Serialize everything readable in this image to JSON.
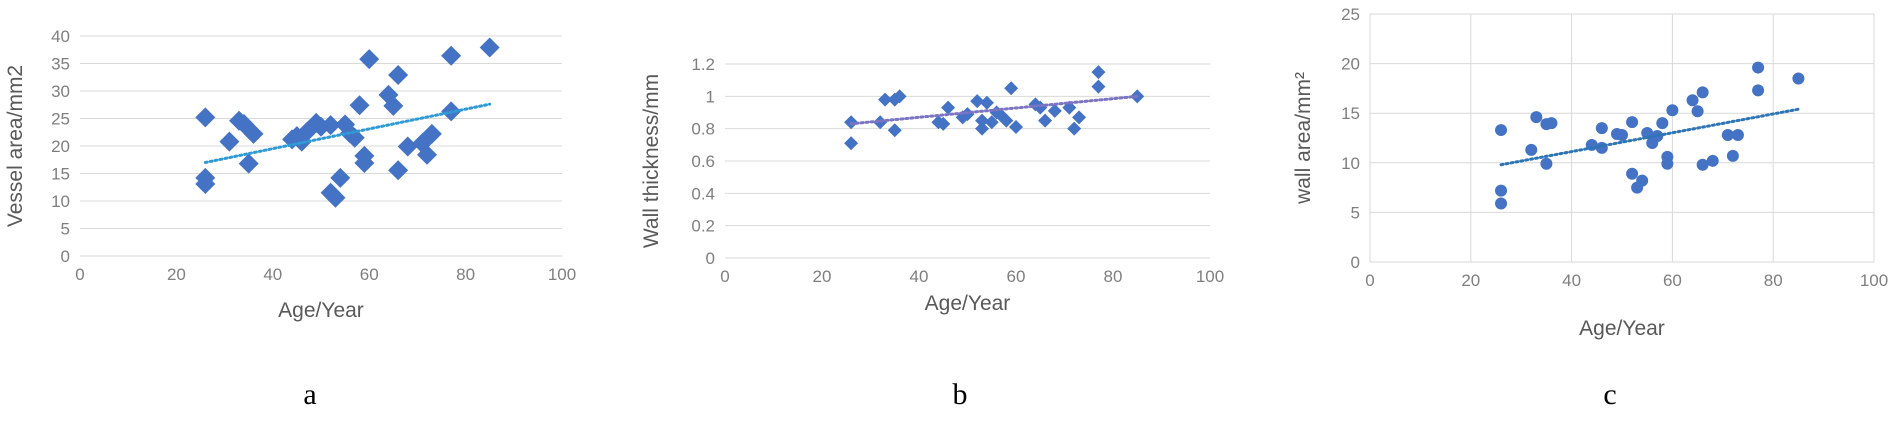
{
  "chart_data": [
    {
      "type": "scatter",
      "panel_label": "a",
      "xlabel": "Age/Year",
      "ylabel": "Vessel  area/mm2",
      "xlim": [
        0,
        100
      ],
      "ylim": [
        0,
        40
      ],
      "xticks": [
        0,
        20,
        40,
        60,
        80,
        100
      ],
      "yticks": [
        0,
        5,
        10,
        15,
        20,
        25,
        30,
        35,
        40
      ],
      "grid": "horizontal",
      "marker": "diamond",
      "color": "#4472c4",
      "trendline_color": "#2e9bd6",
      "trendline": {
        "x": [
          26,
          85
        ],
        "y": [
          17.0,
          27.6
        ]
      },
      "points": [
        {
          "x": 26,
          "y": 25.2
        },
        {
          "x": 26,
          "y": 14.2
        },
        {
          "x": 26,
          "y": 13.1
        },
        {
          "x": 31,
          "y": 20.8
        },
        {
          "x": 33,
          "y": 24.6
        },
        {
          "x": 34,
          "y": 24.0
        },
        {
          "x": 35,
          "y": 16.8
        },
        {
          "x": 36,
          "y": 22.2
        },
        {
          "x": 44,
          "y": 21.2
        },
        {
          "x": 45,
          "y": 21.8
        },
        {
          "x": 46,
          "y": 20.8
        },
        {
          "x": 47,
          "y": 22.5
        },
        {
          "x": 49,
          "y": 24.2
        },
        {
          "x": 50,
          "y": 23.5
        },
        {
          "x": 52,
          "y": 23.8
        },
        {
          "x": 52,
          "y": 11.5
        },
        {
          "x": 53,
          "y": 10.6
        },
        {
          "x": 54,
          "y": 14.2
        },
        {
          "x": 55,
          "y": 23.9
        },
        {
          "x": 56,
          "y": 22.3
        },
        {
          "x": 57,
          "y": 21.5
        },
        {
          "x": 58,
          "y": 27.4
        },
        {
          "x": 59,
          "y": 18.2
        },
        {
          "x": 59,
          "y": 16.9
        },
        {
          "x": 60,
          "y": 35.8
        },
        {
          "x": 64,
          "y": 29.3
        },
        {
          "x": 65,
          "y": 27.3
        },
        {
          "x": 66,
          "y": 32.9
        },
        {
          "x": 66,
          "y": 15.6
        },
        {
          "x": 68,
          "y": 19.9
        },
        {
          "x": 71,
          "y": 20.5
        },
        {
          "x": 72,
          "y": 18.4
        },
        {
          "x": 73,
          "y": 22.2
        },
        {
          "x": 77,
          "y": 36.4
        },
        {
          "x": 77,
          "y": 26.3
        },
        {
          "x": 85,
          "y": 37.9
        }
      ]
    },
    {
      "type": "scatter",
      "panel_label": "b",
      "xlabel": "Age/Year",
      "ylabel": "Wall thickness/mm",
      "xlim": [
        0,
        100
      ],
      "ylim": [
        0,
        1.2
      ],
      "xticks": [
        0,
        20,
        40,
        60,
        80,
        100
      ],
      "yticks": [
        0,
        0.2,
        0.4,
        0.6,
        0.8,
        1,
        1.2
      ],
      "grid": "horizontal",
      "marker": "diamond",
      "color": "#4472c4",
      "trendline_color": "#7b74c4",
      "trendline": {
        "x": [
          26,
          85
        ],
        "y": [
          0.83,
          1.0
        ]
      },
      "points": [
        {
          "x": 26,
          "y": 0.84
        },
        {
          "x": 26,
          "y": 0.71
        },
        {
          "x": 32,
          "y": 0.84
        },
        {
          "x": 33,
          "y": 0.98
        },
        {
          "x": 35,
          "y": 0.79
        },
        {
          "x": 35,
          "y": 0.98
        },
        {
          "x": 36,
          "y": 1.0
        },
        {
          "x": 44,
          "y": 0.84
        },
        {
          "x": 45,
          "y": 0.83
        },
        {
          "x": 46,
          "y": 0.93
        },
        {
          "x": 49,
          "y": 0.87
        },
        {
          "x": 50,
          "y": 0.89
        },
        {
          "x": 52,
          "y": 0.97
        },
        {
          "x": 53,
          "y": 0.85
        },
        {
          "x": 53,
          "y": 0.8
        },
        {
          "x": 54,
          "y": 0.96
        },
        {
          "x": 55,
          "y": 0.84
        },
        {
          "x": 56,
          "y": 0.9
        },
        {
          "x": 57,
          "y": 0.88
        },
        {
          "x": 58,
          "y": 0.85
        },
        {
          "x": 59,
          "y": 1.05
        },
        {
          "x": 60,
          "y": 0.81
        },
        {
          "x": 64,
          "y": 0.95
        },
        {
          "x": 65,
          "y": 0.93
        },
        {
          "x": 66,
          "y": 0.85
        },
        {
          "x": 68,
          "y": 0.91
        },
        {
          "x": 71,
          "y": 0.93
        },
        {
          "x": 72,
          "y": 0.8
        },
        {
          "x": 73,
          "y": 0.87
        },
        {
          "x": 77,
          "y": 1.15
        },
        {
          "x": 77,
          "y": 1.06
        },
        {
          "x": 85,
          "y": 1.0
        }
      ]
    },
    {
      "type": "scatter",
      "panel_label": "c",
      "xlabel": "Age/Year",
      "ylabel": "wall area/mm²",
      "xlim": [
        0,
        100
      ],
      "ylim": [
        0,
        25
      ],
      "xticks": [
        0,
        20,
        40,
        60,
        80,
        100
      ],
      "yticks": [
        0,
        5,
        10,
        15,
        20,
        25
      ],
      "grid": "both",
      "marker": "circle",
      "color": "#4472c4",
      "trendline_color": "#2e75b6",
      "trendline": {
        "x": [
          26,
          85
        ],
        "y": [
          9.8,
          15.4
        ]
      },
      "points": [
        {
          "x": 26,
          "y": 13.3
        },
        {
          "x": 26,
          "y": 7.2
        },
        {
          "x": 26,
          "y": 5.9
        },
        {
          "x": 32,
          "y": 11.3
        },
        {
          "x": 33,
          "y": 14.6
        },
        {
          "x": 35,
          "y": 9.9
        },
        {
          "x": 35,
          "y": 13.9
        },
        {
          "x": 36,
          "y": 14.0
        },
        {
          "x": 44,
          "y": 11.8
        },
        {
          "x": 46,
          "y": 13.5
        },
        {
          "x": 46,
          "y": 11.5
        },
        {
          "x": 49,
          "y": 12.9
        },
        {
          "x": 50,
          "y": 12.8
        },
        {
          "x": 52,
          "y": 14.1
        },
        {
          "x": 52,
          "y": 8.9
        },
        {
          "x": 53,
          "y": 7.5
        },
        {
          "x": 54,
          "y": 8.2
        },
        {
          "x": 55,
          "y": 13.0
        },
        {
          "x": 56,
          "y": 12.0
        },
        {
          "x": 57,
          "y": 12.7
        },
        {
          "x": 58,
          "y": 14.0
        },
        {
          "x": 59,
          "y": 10.6
        },
        {
          "x": 59,
          "y": 9.9
        },
        {
          "x": 60,
          "y": 15.3
        },
        {
          "x": 64,
          "y": 16.3
        },
        {
          "x": 65,
          "y": 15.2
        },
        {
          "x": 66,
          "y": 17.1
        },
        {
          "x": 66,
          "y": 9.8
        },
        {
          "x": 68,
          "y": 10.2
        },
        {
          "x": 71,
          "y": 12.8
        },
        {
          "x": 72,
          "y": 10.7
        },
        {
          "x": 73,
          "y": 12.8
        },
        {
          "x": 77,
          "y": 19.6
        },
        {
          "x": 77,
          "y": 17.3
        },
        {
          "x": 85,
          "y": 18.5
        }
      ]
    }
  ]
}
